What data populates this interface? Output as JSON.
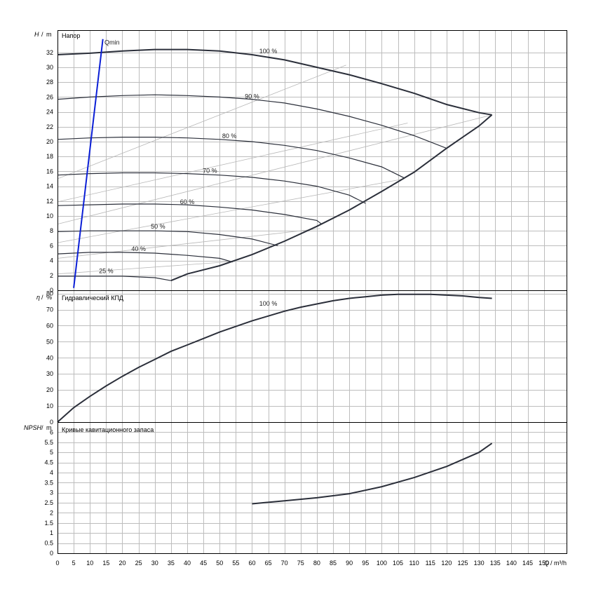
{
  "chart_data": [
    {
      "type": "line",
      "panel": "head",
      "title": "Напор",
      "ylabel_symbol": "H",
      "ylabel_unit": "m",
      "ylim": [
        0,
        35
      ],
      "yticks": [
        0,
        2,
        4,
        6,
        8,
        10,
        12,
        14,
        16,
        18,
        20,
        22,
        24,
        26,
        28,
        30,
        32
      ],
      "grid": true,
      "series": [
        {
          "name": "100 %",
          "label_at": [
            65,
            31.7
          ],
          "points": [
            [
              0,
              31.7
            ],
            [
              10,
              31.9
            ],
            [
              20,
              32.2
            ],
            [
              30,
              32.4
            ],
            [
              40,
              32.4
            ],
            [
              50,
              32.2
            ],
            [
              60,
              31.7
            ],
            [
              70,
              31.0
            ],
            [
              80,
              30.0
            ],
            [
              90,
              29.0
            ],
            [
              100,
              27.8
            ],
            [
              110,
              26.5
            ],
            [
              120,
              25.0
            ],
            [
              130,
              23.9
            ],
            [
              134,
              23.6
            ]
          ]
        },
        {
          "name": "90 %",
          "label_at": [
            60,
            25.6
          ],
          "points": [
            [
              0,
              25.7
            ],
            [
              10,
              26.0
            ],
            [
              20,
              26.2
            ],
            [
              30,
              26.3
            ],
            [
              40,
              26.2
            ],
            [
              50,
              26.0
            ],
            [
              60,
              25.7
            ],
            [
              70,
              25.2
            ],
            [
              80,
              24.4
            ],
            [
              90,
              23.4
            ],
            [
              100,
              22.2
            ],
            [
              110,
              20.8
            ],
            [
              120,
              19.1
            ]
          ]
        },
        {
          "name": "80 %",
          "label_at": [
            53,
            20.3
          ],
          "points": [
            [
              0,
              20.3
            ],
            [
              10,
              20.5
            ],
            [
              20,
              20.6
            ],
            [
              30,
              20.6
            ],
            [
              40,
              20.5
            ],
            [
              50,
              20.3
            ],
            [
              60,
              20.0
            ],
            [
              70,
              19.5
            ],
            [
              80,
              18.8
            ],
            [
              90,
              17.8
            ],
            [
              100,
              16.6
            ],
            [
              107,
              15.1
            ]
          ]
        },
        {
          "name": "70 %",
          "label_at": [
            47,
            15.6
          ],
          "points": [
            [
              0,
              15.5
            ],
            [
              10,
              15.7
            ],
            [
              20,
              15.8
            ],
            [
              30,
              15.8
            ],
            [
              40,
              15.7
            ],
            [
              50,
              15.5
            ],
            [
              60,
              15.2
            ],
            [
              70,
              14.7
            ],
            [
              80,
              14.0
            ],
            [
              90,
              12.8
            ],
            [
              95,
              11.7
            ]
          ]
        },
        {
          "name": "60 %",
          "label_at": [
            40,
            11.4
          ],
          "points": [
            [
              0,
              11.4
            ],
            [
              10,
              11.5
            ],
            [
              20,
              11.6
            ],
            [
              30,
              11.6
            ],
            [
              40,
              11.5
            ],
            [
              50,
              11.2
            ],
            [
              60,
              10.8
            ],
            [
              70,
              10.2
            ],
            [
              80,
              9.4
            ],
            [
              81.5,
              8.9
            ]
          ]
        },
        {
          "name": "50 %",
          "label_at": [
            31,
            8.1
          ],
          "points": [
            [
              0,
              7.9
            ],
            [
              10,
              8.0
            ],
            [
              20,
              8.0
            ],
            [
              30,
              8.0
            ],
            [
              40,
              7.9
            ],
            [
              50,
              7.5
            ],
            [
              60,
              6.9
            ],
            [
              68,
              6.0
            ]
          ]
        },
        {
          "name": "40 %",
          "label_at": [
            25,
            5.1
          ],
          "points": [
            [
              0,
              4.9
            ],
            [
              10,
              5.1
            ],
            [
              20,
              5.1
            ],
            [
              30,
              5.0
            ],
            [
              40,
              4.7
            ],
            [
              50,
              4.3
            ],
            [
              54,
              3.8
            ]
          ]
        },
        {
          "name": "25 %",
          "label_at": [
            15,
            2.1
          ],
          "points": [
            [
              0,
              1.9
            ],
            [
              10,
              1.9
            ],
            [
              20,
              1.9
            ],
            [
              30,
              1.7
            ],
            [
              35,
              1.3
            ]
          ]
        },
        {
          "name": "",
          "role": "operating-range-limit",
          "points": [
            [
              35,
              1.3
            ],
            [
              40,
              2.2
            ],
            [
              50,
              3.3
            ],
            [
              60,
              4.8
            ],
            [
              70,
              6.6
            ],
            [
              80,
              8.6
            ],
            [
              90,
              10.8
            ],
            [
              100,
              13.3
            ],
            [
              110,
              15.9
            ],
            [
              120,
              19.1
            ],
            [
              125,
              20.6
            ],
            [
              130,
              22.1
            ],
            [
              134,
              23.6
            ]
          ]
        },
        {
          "name": "Qmin",
          "label_at": [
            14.5,
            32.9
          ],
          "points": [
            [
              5,
              0.3
            ],
            [
              14,
              33.8
            ]
          ]
        }
      ],
      "efficiency_lines": [
        [
          [
            0,
            15.0
          ],
          [
            89,
            30.3
          ]
        ],
        [
          [
            0,
            11.9
          ],
          [
            108,
            22.5
          ]
        ],
        [
          [
            0,
            8.9
          ],
          [
            134,
            23.6
          ]
        ],
        [
          [
            0,
            6.4
          ],
          [
            107,
            15.0
          ]
        ],
        [
          [
            0,
            4.3
          ],
          [
            81,
            8.3
          ]
        ],
        [
          [
            0,
            2.2
          ],
          [
            55,
            3.9
          ]
        ]
      ]
    },
    {
      "type": "line",
      "panel": "efficiency",
      "title": "Гидравлический КПД",
      "ylabel_symbol": "η",
      "ylabel_unit": "%",
      "ylim": [
        0,
        82
      ],
      "yticks": [
        0,
        10,
        20,
        30,
        40,
        50,
        60,
        70,
        80
      ],
      "grid": true,
      "series": [
        {
          "name": "100 %",
          "label_at": [
            65,
            71.5
          ],
          "points": [
            [
              0,
              0
            ],
            [
              5,
              9
            ],
            [
              10,
              16
            ],
            [
              15,
              22.5
            ],
            [
              20,
              28.5
            ],
            [
              25,
              34
            ],
            [
              30,
              39
            ],
            [
              35,
              44
            ],
            [
              40,
              48
            ],
            [
              45,
              52
            ],
            [
              50,
              56
            ],
            [
              55,
              59.5
            ],
            [
              60,
              63
            ],
            [
              65,
              66
            ],
            [
              70,
              69
            ],
            [
              75,
              71.5
            ],
            [
              80,
              73.5
            ],
            [
              85,
              75.5
            ],
            [
              90,
              77
            ],
            [
              95,
              78
            ],
            [
              100,
              79
            ],
            [
              105,
              79.5
            ],
            [
              110,
              79.5
            ],
            [
              115,
              79.5
            ],
            [
              120,
              79
            ],
            [
              125,
              78.5
            ],
            [
              130,
              77.5
            ],
            [
              134,
              77
            ]
          ]
        }
      ]
    },
    {
      "type": "line",
      "panel": "npsh",
      "title": "Кривые кавитационного запаса",
      "ylabel_symbol": "NPSH",
      "ylabel_unit": "m",
      "ylim": [
        0,
        6.5
      ],
      "yticks": [
        0,
        0.5,
        1,
        1.5,
        2,
        2.5,
        3,
        3.5,
        4,
        4.5,
        5,
        5.5,
        6
      ],
      "ytick_labels": [
        "0",
        "0.5",
        "1",
        "1.5",
        "2",
        "2.5",
        "3",
        "3.5",
        "4",
        "4.5",
        "5",
        "5.5",
        "6"
      ],
      "grid": true,
      "series": [
        {
          "name": "",
          "points": [
            [
              60,
              2.45
            ],
            [
              70,
              2.6
            ],
            [
              80,
              2.75
            ],
            [
              90,
              2.95
            ],
            [
              100,
              3.3
            ],
            [
              110,
              3.75
            ],
            [
              120,
              4.3
            ],
            [
              130,
              5.0
            ],
            [
              134,
              5.45
            ]
          ]
        }
      ]
    }
  ],
  "x_axis": {
    "label_symbol": "Q",
    "label_unit": "m³/h",
    "xlim": [
      0,
      157
    ],
    "ticks": [
      0,
      5,
      10,
      15,
      20,
      25,
      30,
      35,
      40,
      45,
      50,
      55,
      60,
      65,
      70,
      75,
      80,
      85,
      90,
      95,
      100,
      105,
      110,
      115,
      120,
      125,
      130,
      135,
      140,
      145,
      150
    ]
  },
  "colors": {
    "curve": "#2b2f3a",
    "qmin": "#0b1fd6",
    "grid": "#bdbdbd",
    "efficiency_line": "#b8b8b8"
  }
}
